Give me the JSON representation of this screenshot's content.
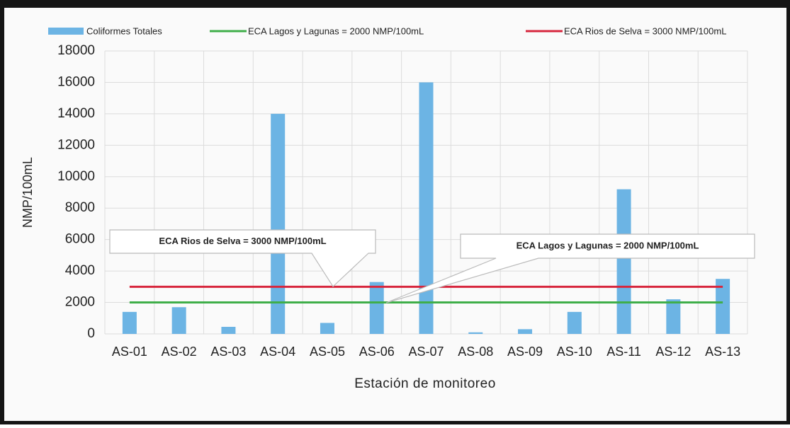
{
  "chart_data": {
    "type": "bar",
    "categories": [
      "AS-01",
      "AS-02",
      "AS-03",
      "AS-04",
      "AS-05",
      "AS-06",
      "AS-07",
      "AS-08",
      "AS-09",
      "AS-10",
      "AS-11",
      "AS-12",
      "AS-13"
    ],
    "series": [
      {
        "name": "Coliformes Totales",
        "type": "bar",
        "color": "#6cb4e4",
        "values": [
          1400,
          1700,
          450,
          14000,
          700,
          3300,
          16000,
          100,
          300,
          1400,
          9200,
          2200,
          3500
        ]
      },
      {
        "name": "ECA Lagos y Lagunas = 2000 NMP/100mL",
        "type": "line",
        "color": "#3fae49",
        "values": [
          2000,
          2000,
          2000,
          2000,
          2000,
          2000,
          2000,
          2000,
          2000,
          2000,
          2000,
          2000,
          2000
        ]
      },
      {
        "name": "ECA Rios de Selva = 3000 NMP/100mL",
        "type": "line",
        "color": "#d7263d",
        "values": [
          3000,
          3000,
          3000,
          3000,
          3000,
          3000,
          3000,
          3000,
          3000,
          3000,
          3000,
          3000,
          3000
        ]
      }
    ],
    "annotations": [
      "ECA Rios de Selva = 3000 NMP/100mL",
      "ECA Lagos y Lagunas = 2000 NMP/100mL"
    ],
    "xlabel": "Estación de monitoreo",
    "ylabel": "NMP/100mL",
    "ylim": [
      0,
      18000
    ],
    "yticks": [
      0,
      2000,
      4000,
      6000,
      8000,
      10000,
      12000,
      14000,
      16000,
      18000
    ],
    "grid": true,
    "legend": "top"
  }
}
